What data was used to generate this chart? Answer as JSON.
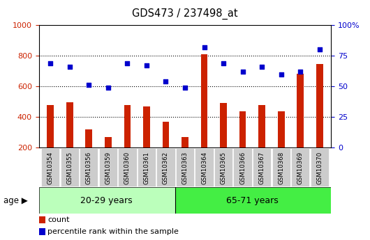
{
  "title": "GDS473 / 237498_at",
  "samples": [
    "GSM10354",
    "GSM10355",
    "GSM10356",
    "GSM10359",
    "GSM10360",
    "GSM10361",
    "GSM10362",
    "GSM10363",
    "GSM10364",
    "GSM10365",
    "GSM10366",
    "GSM10367",
    "GSM10368",
    "GSM10369",
    "GSM10370"
  ],
  "counts": [
    480,
    495,
    320,
    270,
    480,
    470,
    370,
    270,
    810,
    492,
    435,
    478,
    435,
    685,
    745
  ],
  "percentile_ranks": [
    69,
    66,
    51,
    49,
    69,
    67,
    54,
    49,
    82,
    69,
    62,
    66,
    60,
    62,
    80
  ],
  "group1_label": "20-29 years",
  "group2_label": "65-71 years",
  "group1_count": 7,
  "group2_count": 8,
  "left_ylim": [
    200,
    1000
  ],
  "right_ylim": [
    0,
    100
  ],
  "left_yticks": [
    200,
    400,
    600,
    800,
    1000
  ],
  "right_yticks": [
    0,
    25,
    50,
    75,
    100
  ],
  "right_yticklabels": [
    "0",
    "25",
    "50",
    "75",
    "100%"
  ],
  "bar_color": "#cc2200",
  "scatter_color": "#0000cc",
  "bar_width": 0.35,
  "group1_bg": "#bbffbb",
  "group2_bg": "#44ee44",
  "tick_bg": "#cccccc",
  "legend_count_label": "count",
  "legend_pct_label": "percentile rank within the sample",
  "age_label": "age",
  "grid_color": "black",
  "fig_bg": "#ffffff"
}
